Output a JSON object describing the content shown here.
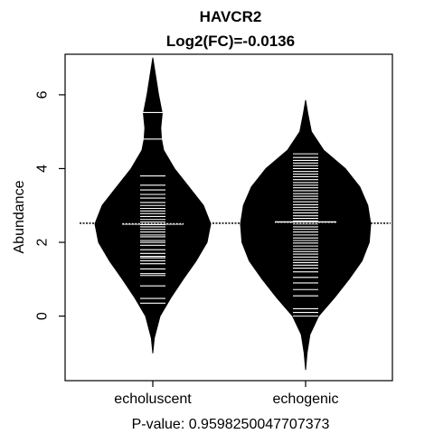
{
  "chart_data": {
    "type": "beanplot",
    "title": "HAVCR2",
    "subtitle": "Log2(FC)=-0.0136",
    "ylabel": "Abundance",
    "xlabel": "P-value: 0.9598250047707373",
    "ylim": [
      -1.75,
      7.1
    ],
    "yticks": [
      0,
      2,
      4,
      6
    ],
    "categories": [
      "echoluscent",
      "echogenic"
    ],
    "overall_mean": 2.52,
    "beans": [
      {
        "name": "echoluscent",
        "median": 2.5,
        "min": -1.0,
        "max": 7.0,
        "density": [
          [
            -1.0,
            0.0
          ],
          [
            -0.6,
            0.02
          ],
          [
            0.0,
            0.1
          ],
          [
            0.5,
            0.25
          ],
          [
            1.0,
            0.42
          ],
          [
            1.5,
            0.6
          ],
          [
            2.0,
            0.75
          ],
          [
            2.5,
            0.8
          ],
          [
            3.0,
            0.7
          ],
          [
            3.5,
            0.5
          ],
          [
            4.0,
            0.3
          ],
          [
            4.5,
            0.15
          ],
          [
            4.8,
            0.12
          ],
          [
            5.1,
            0.11
          ],
          [
            5.5,
            0.13
          ],
          [
            6.0,
            0.08
          ],
          [
            6.5,
            0.04
          ],
          [
            7.0,
            0.0
          ]
        ],
        "points": [
          0.35,
          0.48,
          0.82,
          1.1,
          1.15,
          1.28,
          1.42,
          1.5,
          1.58,
          1.62,
          1.7,
          1.8,
          1.92,
          2.0,
          2.05,
          2.15,
          2.2,
          2.28,
          2.35,
          2.42,
          2.48,
          2.55,
          2.62,
          2.7,
          2.78,
          2.85,
          2.92,
          3.0,
          3.08,
          3.2,
          3.3,
          3.42,
          3.55,
          3.8,
          4.8,
          5.52
        ]
      },
      {
        "name": "echogenic",
        "median": 2.55,
        "min": -1.45,
        "max": 5.85,
        "density": [
          [
            -1.45,
            0.0
          ],
          [
            -1.0,
            0.02
          ],
          [
            -0.5,
            0.06
          ],
          [
            0.0,
            0.18
          ],
          [
            0.5,
            0.4
          ],
          [
            1.0,
            0.6
          ],
          [
            1.5,
            0.78
          ],
          [
            2.0,
            0.88
          ],
          [
            2.5,
            0.9
          ],
          [
            3.0,
            0.86
          ],
          [
            3.5,
            0.75
          ],
          [
            4.0,
            0.55
          ],
          [
            4.5,
            0.25
          ],
          [
            5.0,
            0.08
          ],
          [
            5.5,
            0.03
          ],
          [
            5.85,
            0.0
          ]
        ],
        "points": [
          0.0,
          0.1,
          0.2,
          0.55,
          0.72,
          0.9,
          1.05,
          1.2,
          1.3,
          1.38,
          1.45,
          1.52,
          1.6,
          1.68,
          1.75,
          1.82,
          1.9,
          1.98,
          2.05,
          2.12,
          2.2,
          2.28,
          2.35,
          2.42,
          2.5,
          2.58,
          2.65,
          2.72,
          2.8,
          2.88,
          2.95,
          3.02,
          3.1,
          3.18,
          3.25,
          3.32,
          3.4,
          3.48,
          3.55,
          3.62,
          3.7,
          3.78,
          3.85,
          3.92,
          4.0,
          4.08,
          4.15,
          4.22,
          4.3,
          4.4
        ]
      }
    ]
  }
}
